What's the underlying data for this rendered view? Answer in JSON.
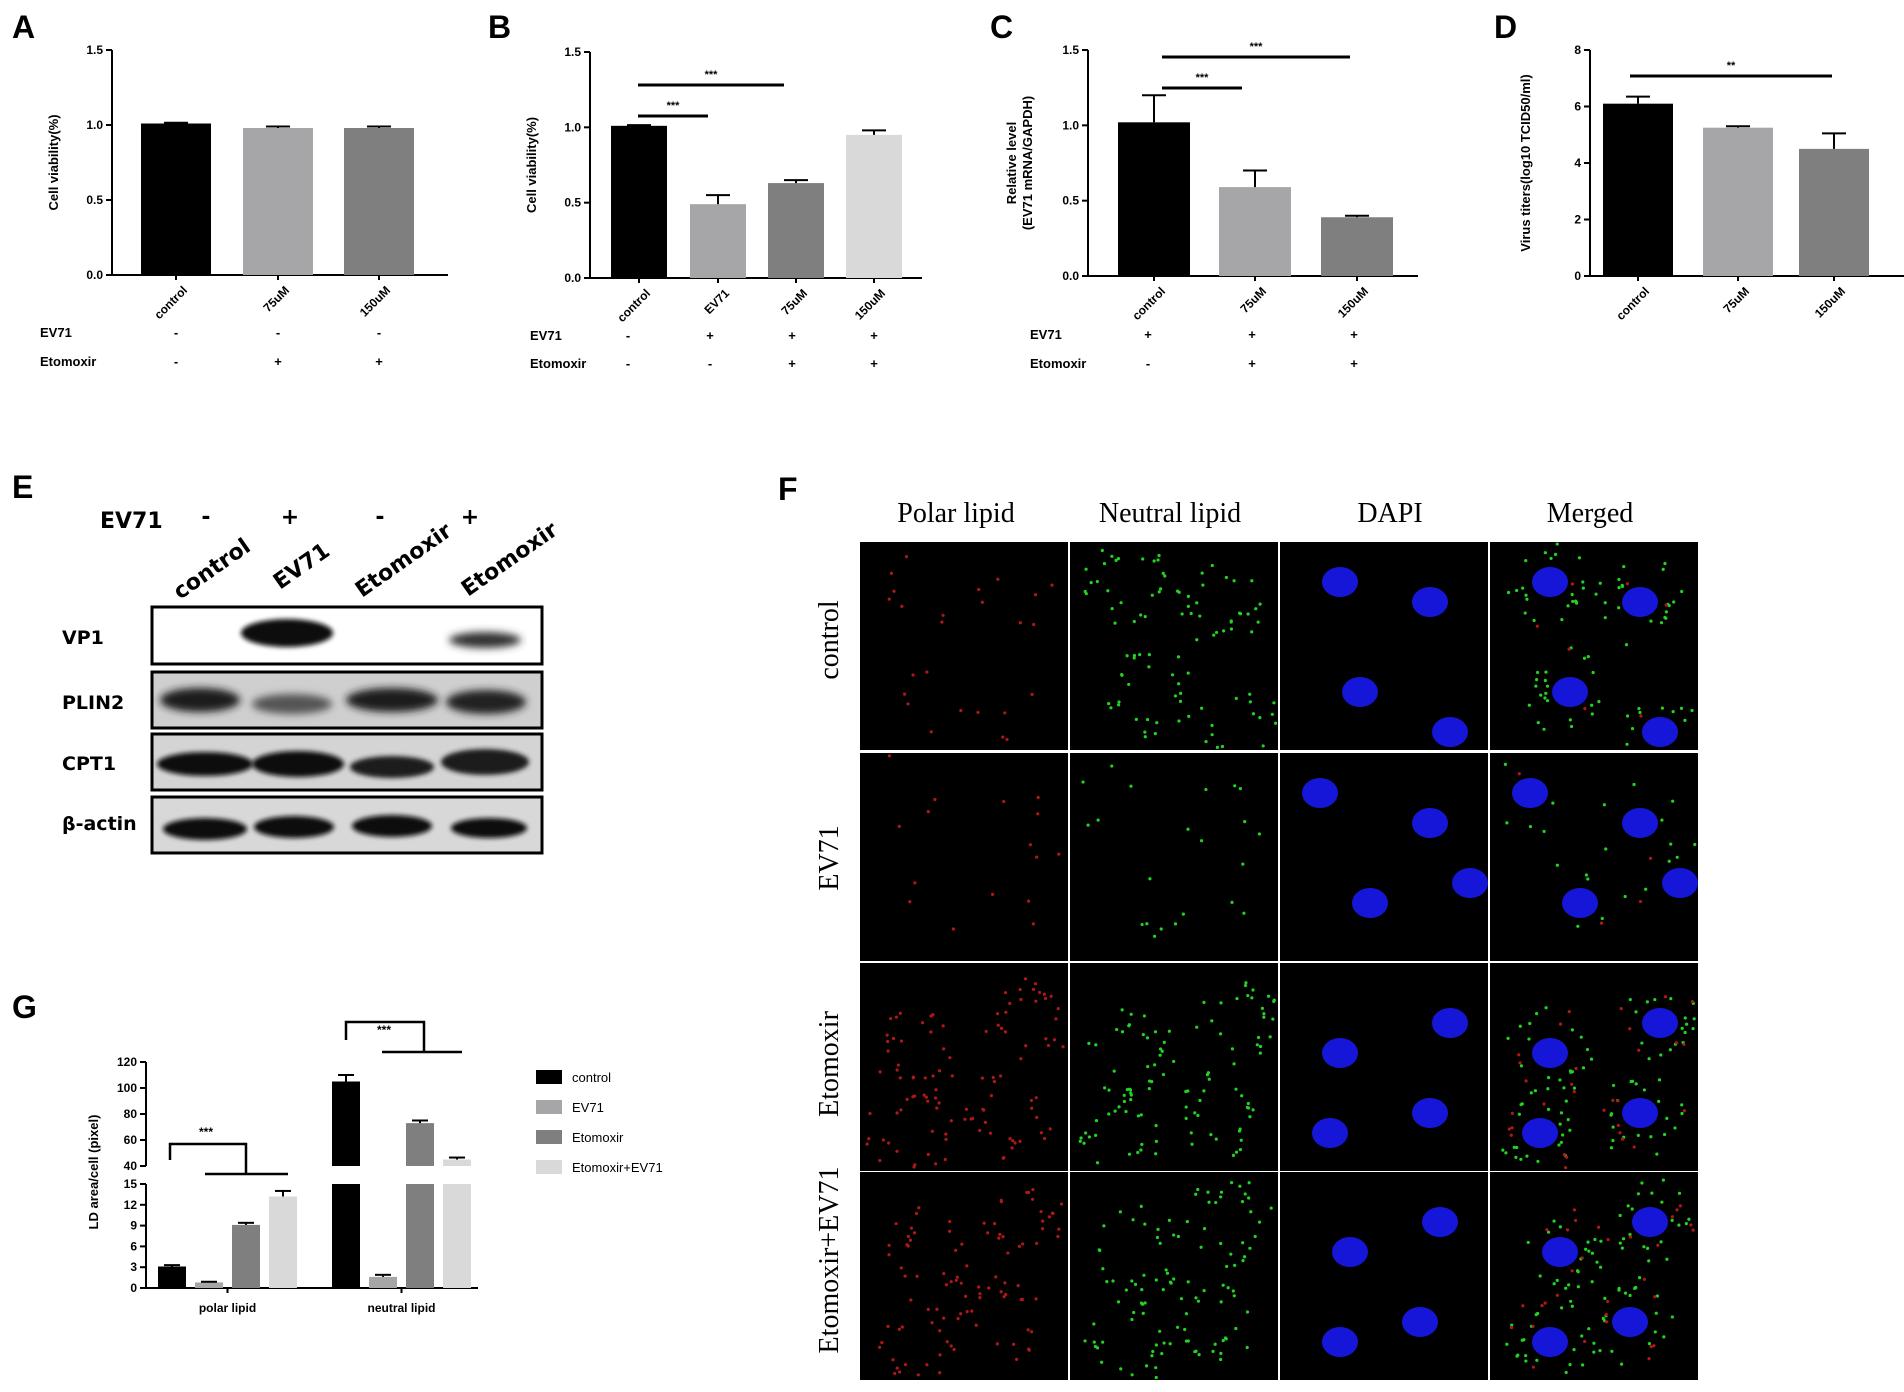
{
  "panels": {
    "A": {
      "letter": "A"
    },
    "B": {
      "letter": "B"
    },
    "C": {
      "letter": "C"
    },
    "D": {
      "letter": "D"
    },
    "E": {
      "letter": "E"
    },
    "F": {
      "letter": "F"
    },
    "G": {
      "letter": "G"
    }
  },
  "colors": {
    "black": "#000000",
    "gray1": "#a6a6a8",
    "gray2": "#7f7f7f",
    "gray3": "#d9d9d9"
  },
  "condition_labels": {
    "ev71": "EV71",
    "etomoxir": "Etomoxir",
    "plus": "+",
    "minus": "-"
  },
  "conditions": {
    "A": {
      "ev71": [
        "-",
        "-",
        "-"
      ],
      "etomoxir": [
        "-",
        "+",
        "+"
      ]
    },
    "B": {
      "ev71": [
        "-",
        "+",
        "+",
        "+"
      ],
      "etomoxir": [
        "-",
        "-",
        "+",
        "+"
      ]
    },
    "C": {
      "ev71": [
        "+",
        "+",
        "+"
      ],
      "etomoxir": [
        "-",
        "+",
        "+"
      ]
    }
  },
  "chart_data": [
    {
      "id": "A",
      "type": "bar",
      "ylabel": "Cell viability(%)",
      "categories": [
        "control",
        "75uM",
        "150uM"
      ],
      "values": [
        1.01,
        0.98,
        0.98
      ],
      "errors": [
        0.005,
        0.01,
        0.01
      ],
      "ylim": [
        0,
        1.5
      ],
      "yticks": [
        "0.0",
        "0.5",
        "1.0",
        "1.5"
      ]
    },
    {
      "id": "B",
      "type": "bar",
      "ylabel": "Cell viability(%)",
      "categories": [
        "control",
        "EV71",
        "75uM",
        "150uM"
      ],
      "values": [
        1.01,
        0.49,
        0.63,
        0.95
      ],
      "errors": [
        0.005,
        0.06,
        0.02,
        0.03
      ],
      "ylim": [
        0,
        1.5
      ],
      "yticks": [
        "0.0",
        "0.5",
        "1.0",
        "1.5"
      ],
      "significance": [
        {
          "label": "***"
        },
        {
          "label": "***"
        }
      ]
    },
    {
      "id": "C",
      "type": "bar",
      "ylabel": "Relative level",
      "ylabel2": "(EV71 mRNA/GAPDH)",
      "categories": [
        "control",
        "75uM",
        "150uM"
      ],
      "values": [
        1.02,
        0.59,
        0.39
      ],
      "errors": [
        0.18,
        0.11,
        0.01
      ],
      "ylim": [
        0,
        1.5
      ],
      "yticks": [
        "0.0",
        "0.5",
        "1.0",
        "1.5"
      ],
      "significance": [
        {
          "label": "***"
        },
        {
          "label": "***"
        }
      ]
    },
    {
      "id": "D",
      "type": "bar",
      "ylabel": "Virus titers(log10 TCID50/ml)",
      "categories": [
        "control",
        "75uM",
        "150uM"
      ],
      "values": [
        6.1,
        5.25,
        4.5
      ],
      "errors": [
        0.25,
        0.05,
        0.55
      ],
      "ylim": [
        0,
        8
      ],
      "yticks": [
        "0",
        "2",
        "4",
        "6",
        "8"
      ],
      "significance": [
        {
          "label": "**"
        }
      ]
    },
    {
      "id": "G",
      "type": "bar",
      "ylabel": "LD area/cell (pixel)",
      "groups": [
        "polar lipid",
        "neutral lipid"
      ],
      "series": [
        {
          "name": "control",
          "values": [
            3.1,
            105
          ],
          "errors": [
            0.2,
            5
          ]
        },
        {
          "name": "EV71",
          "values": [
            0.8,
            1.6
          ],
          "errors": [
            0.1,
            0.3
          ]
        },
        {
          "name": "Etomoxir",
          "values": [
            9.1,
            73
          ],
          "errors": [
            0.3,
            2
          ]
        },
        {
          "name": "Etomoxir+EV71",
          "values": [
            13.2,
            45
          ],
          "errors": [
            0.8,
            1.5
          ]
        }
      ],
      "yticks_low": [
        "0",
        "3",
        "6",
        "9",
        "12",
        "15"
      ],
      "yticks_high": [
        "40",
        "60",
        "80",
        "100",
        "120"
      ],
      "axis_break": [
        15,
        40
      ],
      "significance": [
        {
          "label": "***"
        },
        {
          "label": "***"
        }
      ]
    }
  ],
  "western_blot": {
    "ev71_label": "EV71",
    "ev71_signs": [
      "-",
      "+",
      "-",
      "+"
    ],
    "lanes": [
      "control",
      "EV71",
      "Etomoxir",
      "Etomoxir"
    ],
    "rows": [
      "VP1",
      "PLIN2",
      "CPT1",
      "β-actin"
    ]
  },
  "microscopy": {
    "columns": [
      "Polar lipid",
      "Neutral lipid",
      "DAPI",
      "Merged"
    ],
    "rows": [
      "control",
      "EV71",
      "Etomoxir",
      "Etomoxir+EV71"
    ]
  }
}
